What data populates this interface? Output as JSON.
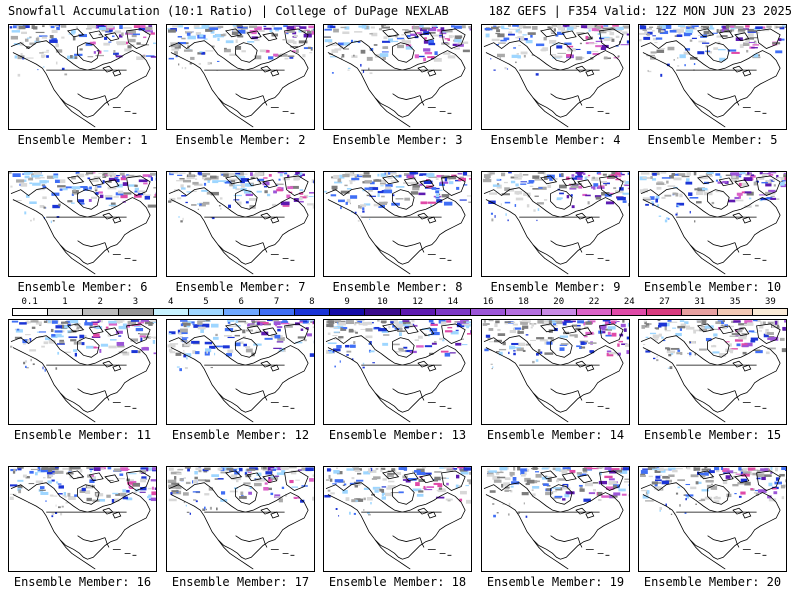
{
  "header": {
    "left_title": "Snowfall Accumulation (10:1 Ratio) | College of DuPage NEXLAB",
    "right_title": "18Z GEFS | F354 Valid: 12Z MON JUN 23 2025"
  },
  "panels": [
    {
      "label": "Ensemble Member: 1"
    },
    {
      "label": "Ensemble Member: 2"
    },
    {
      "label": "Ensemble Member: 3"
    },
    {
      "label": "Ensemble Member: 4"
    },
    {
      "label": "Ensemble Member: 5"
    },
    {
      "label": "Ensemble Member: 6"
    },
    {
      "label": "Ensemble Member: 7"
    },
    {
      "label": "Ensemble Member: 8"
    },
    {
      "label": "Ensemble Member: 9"
    },
    {
      "label": "Ensemble Member: 10"
    },
    {
      "label": "Ensemble Member: 11"
    },
    {
      "label": "Ensemble Member: 12"
    },
    {
      "label": "Ensemble Member: 13"
    },
    {
      "label": "Ensemble Member: 14"
    },
    {
      "label": "Ensemble Member: 15"
    },
    {
      "label": "Ensemble Member: 16"
    },
    {
      "label": "Ensemble Member: 17"
    },
    {
      "label": "Ensemble Member: 18"
    },
    {
      "label": "Ensemble Member: 19"
    },
    {
      "label": "Ensemble Member: 20"
    }
  ],
  "legend": {
    "labels": [
      "0.1",
      "1",
      "2",
      "3",
      "4",
      "5",
      "6",
      "7",
      "8",
      "9",
      "10",
      "12",
      "14",
      "16",
      "18",
      "20",
      "22",
      "24",
      "27",
      "31",
      "35",
      "39"
    ],
    "colors": [
      "#ffffff",
      "#e0e0e0",
      "#bdbdbd",
      "#969696",
      "#c7f2ff",
      "#9ed6ff",
      "#6fa8ff",
      "#3f6ef5",
      "#1b34d6",
      "#140aa8",
      "#3a0a8c",
      "#5e1ab0",
      "#7d38c6",
      "#9c55d8",
      "#b46ee0",
      "#c98ae6",
      "#dc62c8",
      "#e04aa8",
      "#d83a7e",
      "#e8a0a0",
      "#f2c8b4",
      "#faead6"
    ]
  },
  "map": {
    "land_color": "#ffffff",
    "border_color": "#000000",
    "snow_colors": [
      "#d8d8d8",
      "#aaaaaa",
      "#7d7d7d",
      "#9ed6ff",
      "#3f6ef5",
      "#1b34d6",
      "#5e1ab0",
      "#9c55d8",
      "#dc62c8",
      "#e04aa8"
    ]
  }
}
